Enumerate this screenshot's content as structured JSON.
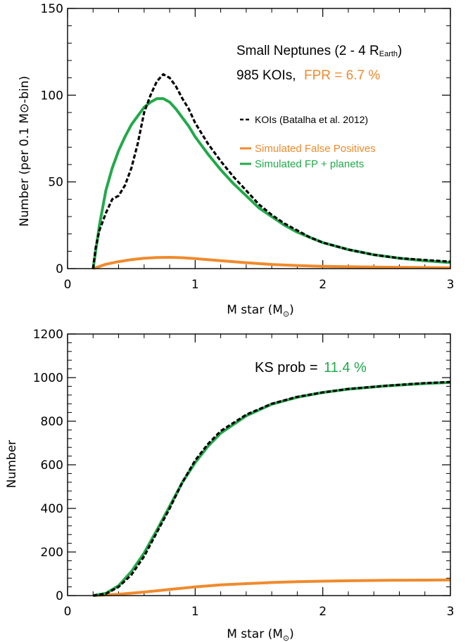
{
  "chart_data": [
    {
      "type": "line",
      "xlabel": "M star (M",
      "xlabel_sub": "⊙",
      "xlabel_end": ")",
      "ylabel": "Number (per 0.1 M⊙-bin)",
      "xlim": [
        0,
        3
      ],
      "ylim": [
        0,
        150
      ],
      "xticks": [
        0,
        1,
        2,
        3
      ],
      "yticks": [
        0,
        50,
        100,
        150
      ],
      "title_line1": "Small Neptunes (2 - 4 R",
      "title_sub": "Earth",
      "title_end": ")",
      "count_label": "985 KOIs,",
      "fpr_label": "FPR = 6.7 %",
      "legend": [
        {
          "label": "KOIs (Batalha et al. 2012)",
          "color": "#000000",
          "style": "dashed"
        },
        {
          "label": "Simulated False Positives",
          "color": "#f08a2c",
          "style": "solid"
        },
        {
          "label": "Simulated FP + planets",
          "color": "#22a94a",
          "style": "solid"
        }
      ],
      "series": [
        {
          "name": "KOIs (Batalha et al. 2012)",
          "color": "#000000",
          "x": [
            0.2,
            0.22,
            0.25,
            0.3,
            0.35,
            0.4,
            0.45,
            0.5,
            0.55,
            0.6,
            0.65,
            0.7,
            0.75,
            0.8,
            0.85,
            0.9,
            0.95,
            1.0,
            1.1,
            1.2,
            1.3,
            1.4,
            1.5,
            1.6,
            1.7,
            1.8,
            1.9,
            2.0,
            2.2,
            2.4,
            2.6,
            2.8,
            3.0
          ],
          "y": [
            0,
            12,
            22,
            32,
            40,
            42,
            48,
            58,
            72,
            90,
            100,
            108,
            112,
            110,
            105,
            98,
            92,
            84,
            72,
            62,
            53,
            45,
            37,
            31,
            26,
            22,
            18,
            15,
            11,
            8,
            6,
            5,
            4
          ]
        },
        {
          "name": "Simulated False Positives",
          "color": "#f08a2c",
          "x": [
            0.2,
            0.3,
            0.4,
            0.5,
            0.6,
            0.7,
            0.8,
            0.9,
            1.0,
            1.2,
            1.4,
            1.6,
            1.8,
            2.0,
            2.5,
            3.0
          ],
          "y": [
            0,
            2.5,
            4.0,
            5.2,
            6.0,
            6.4,
            6.5,
            6.3,
            5.8,
            4.6,
            3.4,
            2.4,
            1.8,
            1.3,
            0.8,
            0.5
          ]
        },
        {
          "name": "Simulated FP + planets",
          "color": "#22a94a",
          "x": [
            0.2,
            0.25,
            0.3,
            0.35,
            0.4,
            0.45,
            0.5,
            0.55,
            0.6,
            0.65,
            0.7,
            0.75,
            0.8,
            0.85,
            0.9,
            0.95,
            1.0,
            1.1,
            1.2,
            1.3,
            1.4,
            1.5,
            1.6,
            1.7,
            1.8,
            1.9,
            2.0,
            2.2,
            2.4,
            2.6,
            2.8,
            3.0
          ],
          "y": [
            0,
            25,
            45,
            58,
            68,
            76,
            83,
            88,
            93,
            96,
            98,
            98,
            96,
            92,
            87,
            82,
            76,
            66,
            57,
            49,
            42,
            35,
            30,
            25,
            21,
            18,
            15,
            11,
            8,
            6,
            4.5,
            3.5
          ]
        }
      ]
    },
    {
      "type": "line",
      "xlabel": "M star (M",
      "xlabel_sub": "⊙",
      "xlabel_end": ")",
      "ylabel": "Number",
      "xlim": [
        0,
        3
      ],
      "ylim": [
        0,
        1200
      ],
      "xticks": [
        0,
        1,
        2,
        3
      ],
      "yticks": [
        0,
        200,
        400,
        600,
        800,
        1000,
        1200
      ],
      "ks_label": "KS prob =",
      "ks_value": "11.4 %",
      "series": [
        {
          "name": "KOIs (Batalha et al. 2012)",
          "color": "#000000",
          "x": [
            0.2,
            0.3,
            0.4,
            0.5,
            0.6,
            0.7,
            0.8,
            0.9,
            1.0,
            1.1,
            1.2,
            1.4,
            1.6,
            1.8,
            2.0,
            2.2,
            2.5,
            2.8,
            3.0
          ],
          "y": [
            0,
            8,
            40,
            95,
            180,
            290,
            400,
            520,
            620,
            695,
            755,
            830,
            880,
            912,
            932,
            948,
            963,
            975,
            980
          ]
        },
        {
          "name": "Simulated False Positives",
          "color": "#f08a2c",
          "x": [
            0.2,
            0.4,
            0.6,
            0.8,
            1.0,
            1.2,
            1.4,
            1.6,
            1.8,
            2.0,
            2.2,
            2.5,
            2.8,
            3.0
          ],
          "y": [
            0,
            6,
            16,
            28,
            40,
            49,
            55,
            60,
            64,
            66,
            68,
            70,
            71,
            72
          ]
        },
        {
          "name": "Simulated FP + planets",
          "color": "#22a94a",
          "x": [
            0.2,
            0.3,
            0.4,
            0.5,
            0.6,
            0.7,
            0.8,
            0.9,
            1.0,
            1.1,
            1.2,
            1.4,
            1.6,
            1.8,
            2.0,
            2.2,
            2.5,
            2.8,
            3.0
          ],
          "y": [
            0,
            10,
            45,
            110,
            195,
            300,
            410,
            520,
            610,
            685,
            745,
            825,
            878,
            910,
            932,
            947,
            962,
            973,
            978
          ]
        }
      ]
    }
  ]
}
